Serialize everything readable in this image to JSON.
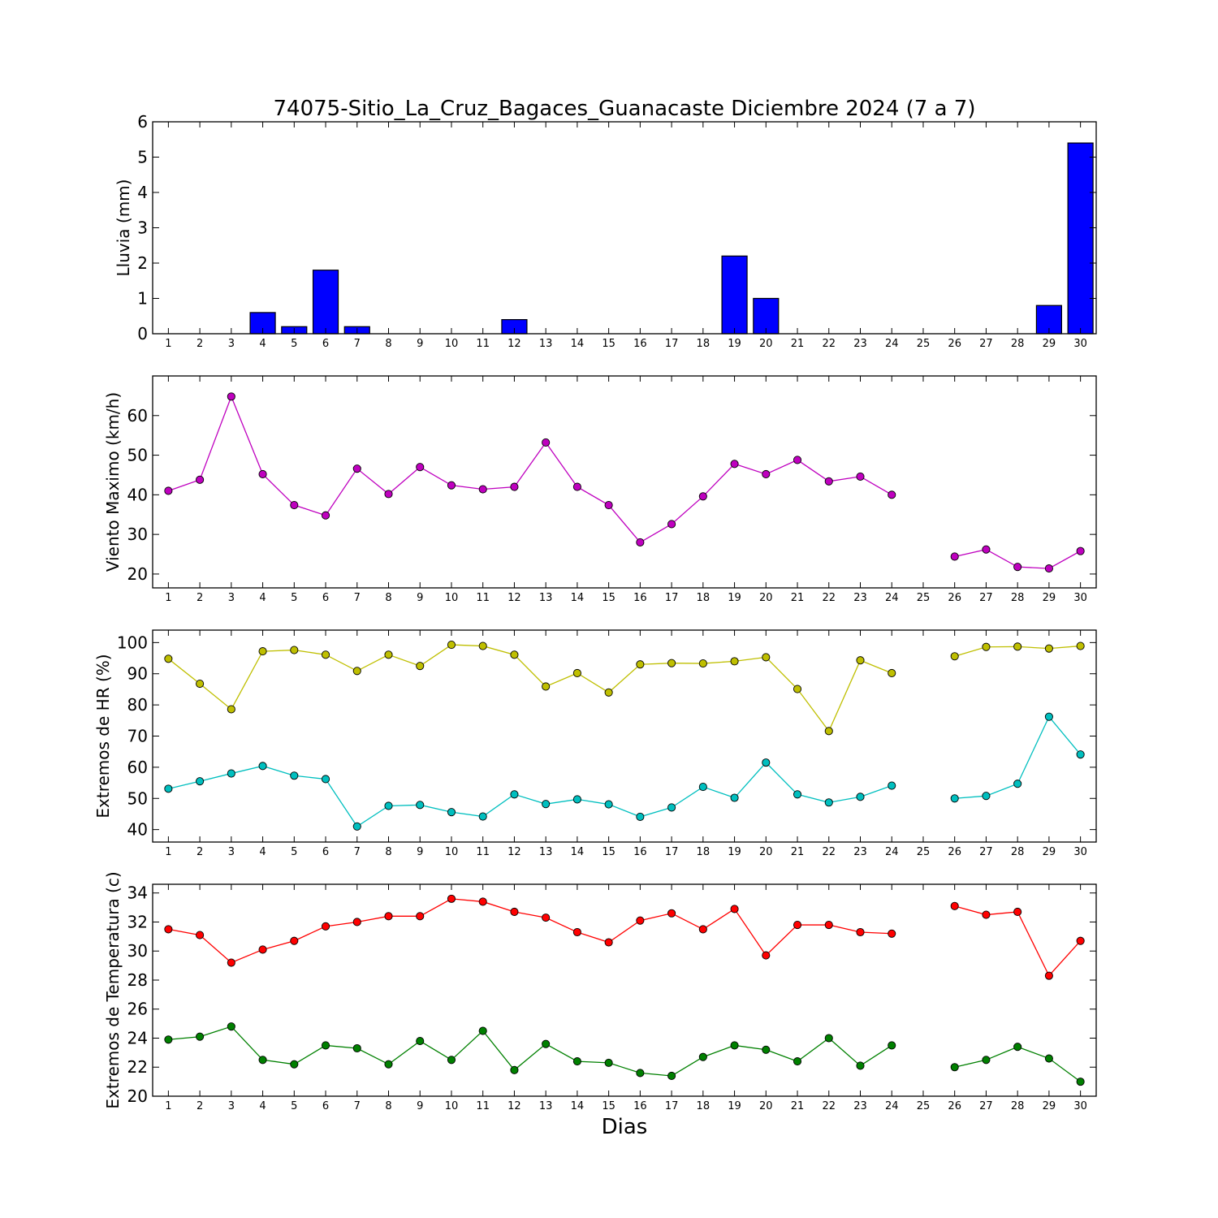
{
  "figure": {
    "title": "74075-Sitio_La_Cruz_Bagaces_Guanacaste Diciembre 2024  (7 a 7)",
    "xlabel": "Dias"
  },
  "chart_data": [
    {
      "type": "bar",
      "ylabel": "Lluvia (mm)",
      "ylim": [
        0,
        6
      ],
      "yticks": [
        0,
        1,
        2,
        3,
        4,
        5,
        6
      ],
      "xlim": [
        0.5,
        30.5
      ],
      "categories": [
        1,
        2,
        3,
        4,
        5,
        6,
        7,
        8,
        9,
        10,
        11,
        12,
        13,
        14,
        15,
        16,
        17,
        18,
        19,
        20,
        21,
        22,
        23,
        24,
        25,
        26,
        27,
        28,
        29,
        30
      ],
      "series": [
        {
          "color": "#0000ff",
          "values": [
            0,
            0,
            0,
            0.6,
            0.2,
            1.8,
            0.2,
            0,
            0,
            0,
            0,
            0.4,
            0,
            0,
            0,
            0,
            0,
            0,
            2.2,
            1.0,
            0,
            0,
            0,
            0,
            null,
            0,
            0,
            0,
            0.8,
            5.4
          ]
        }
      ]
    },
    {
      "type": "line",
      "ylabel": "Viento Maximo (km/h)",
      "ylim": [
        16.5,
        70
      ],
      "yticks": [
        20,
        30,
        40,
        50,
        60
      ],
      "xlim": [
        0.5,
        30.5
      ],
      "categories": [
        1,
        2,
        3,
        4,
        5,
        6,
        7,
        8,
        9,
        10,
        11,
        12,
        13,
        14,
        15,
        16,
        17,
        18,
        19,
        20,
        21,
        22,
        23,
        24,
        25,
        26,
        27,
        28,
        29,
        30
      ],
      "series": [
        {
          "color": "#bf00bf",
          "values": [
            41.0,
            43.8,
            64.8,
            45.2,
            37.4,
            34.8,
            46.6,
            40.2,
            47.0,
            42.4,
            41.4,
            42.0,
            53.2,
            42.0,
            37.4,
            28.0,
            32.6,
            39.6,
            47.8,
            45.2,
            48.8,
            43.4,
            44.6,
            40.0,
            null,
            24.4,
            26.2,
            21.8,
            21.4,
            25.8
          ]
        }
      ]
    },
    {
      "type": "line",
      "ylabel": "Extremos de HR (%)",
      "ylim": [
        36,
        104
      ],
      "yticks": [
        40,
        50,
        60,
        70,
        80,
        90,
        100
      ],
      "xlim": [
        0.5,
        30.5
      ],
      "categories": [
        1,
        2,
        3,
        4,
        5,
        6,
        7,
        8,
        9,
        10,
        11,
        12,
        13,
        14,
        15,
        16,
        17,
        18,
        19,
        20,
        21,
        22,
        23,
        24,
        25,
        26,
        27,
        28,
        29,
        30
      ],
      "series": [
        {
          "color": "#bfbf00",
          "values": [
            94.8,
            86.8,
            78.6,
            97.2,
            97.6,
            96.1,
            90.9,
            96.1,
            92.5,
            99.3,
            98.9,
            96.1,
            85.9,
            90.2,
            84.0,
            93.0,
            93.4,
            93.3,
            94.0,
            95.3,
            85.1,
            71.6,
            94.3,
            90.2,
            null,
            95.6,
            98.6,
            98.7,
            98.1,
            98.9
          ]
        },
        {
          "color": "#00bfbf",
          "values": [
            53.1,
            55.5,
            58.0,
            60.4,
            57.3,
            56.2,
            41.0,
            47.6,
            47.9,
            45.6,
            44.2,
            51.3,
            48.2,
            49.7,
            48.1,
            44.1,
            47.1,
            53.7,
            50.2,
            61.5,
            51.3,
            48.7,
            50.5,
            54.1,
            null,
            50.0,
            50.8,
            54.7,
            76.2,
            64.1
          ]
        }
      ]
    },
    {
      "type": "line",
      "ylabel": "Extremos de Temperatura (c)",
      "ylim": [
        20,
        34.6
      ],
      "yticks": [
        20,
        22,
        24,
        26,
        28,
        30,
        32,
        34
      ],
      "xlim": [
        0.5,
        30.5
      ],
      "categories": [
        1,
        2,
        3,
        4,
        5,
        6,
        7,
        8,
        9,
        10,
        11,
        12,
        13,
        14,
        15,
        16,
        17,
        18,
        19,
        20,
        21,
        22,
        23,
        24,
        25,
        26,
        27,
        28,
        29,
        30
      ],
      "series": [
        {
          "color": "#ff0000",
          "values": [
            31.5,
            31.1,
            29.2,
            30.1,
            30.7,
            31.7,
            32.0,
            32.4,
            32.4,
            33.6,
            33.4,
            32.7,
            32.3,
            31.3,
            30.6,
            32.1,
            32.6,
            31.5,
            32.9,
            29.7,
            31.8,
            31.8,
            31.3,
            31.2,
            null,
            33.1,
            32.5,
            32.7,
            28.3,
            30.7
          ]
        },
        {
          "color": "#008000",
          "values": [
            23.9,
            24.1,
            24.8,
            22.5,
            22.2,
            23.5,
            23.3,
            22.2,
            23.8,
            22.5,
            24.5,
            21.8,
            23.6,
            22.4,
            22.3,
            21.6,
            21.4,
            22.7,
            23.5,
            23.2,
            22.4,
            24.0,
            22.1,
            23.5,
            null,
            22.0,
            22.5,
            23.4,
            22.6,
            21.0
          ]
        }
      ]
    }
  ]
}
